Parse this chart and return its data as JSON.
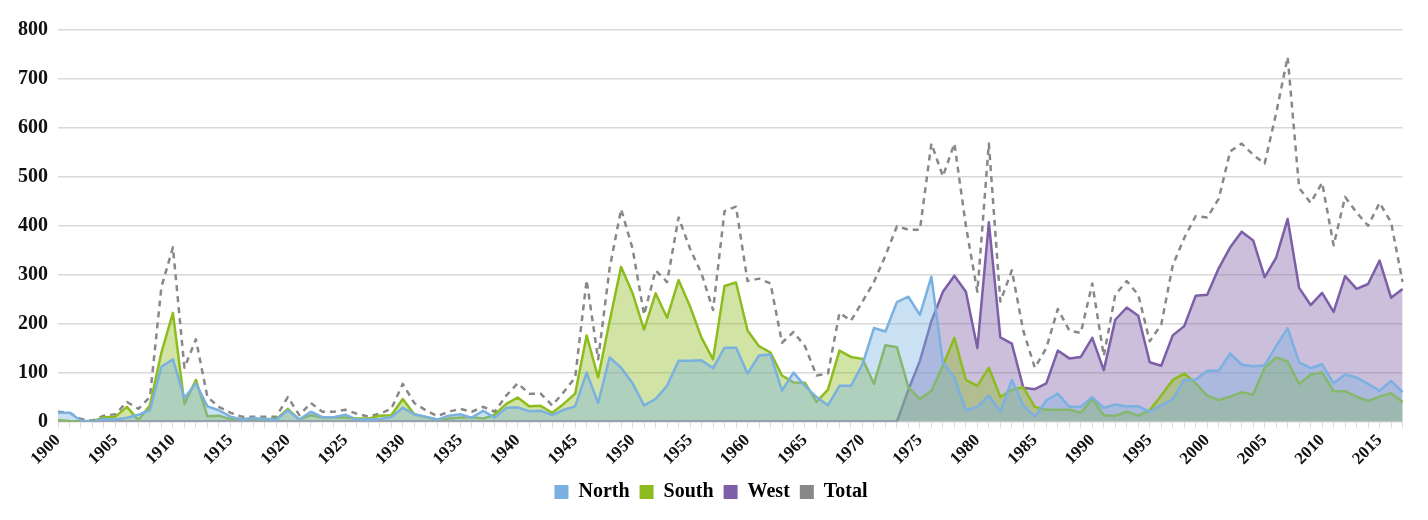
{
  "chart_data": {
    "type": "area",
    "categories": [
      "1900",
      null,
      null,
      null,
      null,
      "1905",
      null,
      null,
      null,
      null,
      "1910",
      null,
      null,
      null,
      null,
      "1915",
      null,
      null,
      null,
      null,
      "1920",
      null,
      null,
      null,
      null,
      "1925",
      null,
      null,
      null,
      null,
      "1930",
      null,
      null,
      null,
      null,
      "1935",
      null,
      null,
      null,
      null,
      "1940",
      null,
      null,
      null,
      null,
      "1945",
      null,
      null,
      null,
      null,
      "1950",
      null,
      null,
      null,
      null,
      "1955",
      null,
      null,
      null,
      null,
      "1960",
      null,
      null,
      null,
      null,
      "1965",
      null,
      null,
      null,
      null,
      "1970",
      null,
      null,
      null,
      null,
      "1975",
      null,
      null,
      null,
      null,
      "1980",
      null,
      null,
      null,
      null,
      "1985",
      null,
      null,
      null,
      null,
      "1990",
      null,
      null,
      null,
      null,
      "1995",
      null,
      null,
      null,
      null,
      "2000",
      null,
      null,
      null,
      null,
      "2005",
      null,
      null,
      null,
      null,
      "2010",
      null,
      null,
      null,
      null,
      "2015",
      null,
      null
    ],
    "series": [
      {
        "name": "North",
        "color": "#7ab1e0",
        "values": [
          18,
          18,
          2,
          0,
          5,
          4,
          8,
          14,
          23,
          112,
          127,
          48,
          78,
          31,
          23,
          10,
          4,
          7,
          5,
          4,
          23,
          4,
          20,
          9,
          9,
          14,
          4,
          4,
          5,
          9,
          28,
          15,
          10,
          4,
          12,
          15,
          8,
          22,
          8,
          28,
          29,
          21,
          22,
          13,
          24,
          31,
          100,
          38,
          131,
          110,
          78,
          33,
          46,
          73,
          124,
          124,
          125,
          109,
          151,
          151,
          98,
          135,
          137,
          63,
          100,
          73,
          50,
          33,
          73,
          73,
          117,
          191,
          184,
          244,
          255,
          218,
          296,
          121,
          90,
          23,
          30,
          53,
          20,
          85,
          33,
          10,
          43,
          57,
          30,
          30,
          50,
          28,
          35,
          31,
          31,
          20,
          33,
          46,
          85,
          86,
          104,
          104,
          139,
          116,
          113,
          115,
          154,
          191,
          121,
          109,
          117,
          78,
          96,
          90,
          77,
          63,
          83,
          60
        ]
      },
      {
        "name": "South",
        "color": "#8dbc1e",
        "values": [
          3,
          1,
          0,
          0,
          9,
          10,
          30,
          3,
          33,
          141,
          222,
          36,
          85,
          11,
          12,
          5,
          5,
          5,
          5,
          5,
          26,
          4,
          13,
          8,
          9,
          8,
          6,
          6,
          12,
          13,
          46,
          15,
          9,
          4,
          6,
          8,
          9,
          6,
          14,
          36,
          49,
          31,
          32,
          18,
          36,
          57,
          176,
          90,
          205,
          316,
          262,
          188,
          262,
          212,
          289,
          235,
          171,
          127,
          277,
          284,
          186,
          154,
          141,
          94,
          80,
          79,
          40,
          65,
          145,
          132,
          128,
          77,
          156,
          152,
          70,
          46,
          63,
          114,
          171,
          85,
          73,
          110,
          50,
          65,
          70,
          30,
          24,
          24,
          24,
          18,
          46,
          13,
          12,
          20,
          12,
          23,
          53,
          85,
          98,
          78,
          53,
          44,
          51,
          60,
          55,
          110,
          131,
          123,
          77,
          96,
          100,
          62,
          62,
          51,
          42,
          51,
          58,
          40
        ]
      },
      {
        "name": "West",
        "color": "#7d5fa8",
        "values": [
          0,
          0,
          0,
          0,
          0,
          0,
          0,
          0,
          0,
          0,
          0,
          0,
          0,
          0,
          0,
          0,
          0,
          0,
          0,
          0,
          0,
          0,
          0,
          0,
          0,
          0,
          0,
          0,
          0,
          0,
          0,
          0,
          0,
          0,
          0,
          0,
          0,
          0,
          0,
          0,
          0,
          0,
          0,
          0,
          0,
          0,
          0,
          0,
          0,
          0,
          0,
          0,
          0,
          0,
          0,
          0,
          0,
          0,
          0,
          0,
          0,
          0,
          0,
          0,
          0,
          0,
          0,
          0,
          0,
          0,
          0,
          0,
          0,
          0,
          65,
          124,
          205,
          265,
          298,
          265,
          150,
          407,
          172,
          159,
          69,
          66,
          78,
          145,
          129,
          132,
          171,
          105,
          208,
          233,
          216,
          121,
          114,
          176,
          195,
          257,
          259,
          313,
          356,
          388,
          370,
          295,
          335,
          414,
          273,
          238,
          263,
          224,
          297,
          271,
          281,
          329,
          253,
          271
        ]
      },
      {
        "name": "Total",
        "type": "line",
        "line_style": "dashed",
        "color": "#888888",
        "values": [
          20,
          18,
          5,
          2,
          12,
          15,
          40,
          26,
          50,
          275,
          356,
          110,
          168,
          50,
          30,
          18,
          10,
          10,
          10,
          10,
          50,
          13,
          38,
          20,
          20,
          24,
          16,
          10,
          16,
          26,
          77,
          38,
          23,
          11,
          20,
          26,
          20,
          30,
          20,
          53,
          78,
          57,
          57,
          33,
          60,
          90,
          289,
          127,
          313,
          434,
          353,
          218,
          309,
          285,
          417,
          353,
          302,
          228,
          430,
          439,
          287,
          292,
          282,
          161,
          183,
          154,
          94,
          98,
          222,
          206,
          245,
          285,
          339,
          399,
          392,
          392,
          568,
          501,
          568,
          400,
          265,
          568,
          245,
          309,
          185,
          110,
          150,
          230,
          186,
          181,
          282,
          134,
          259,
          287,
          259,
          164,
          198,
          319,
          375,
          420,
          417,
          455,
          552,
          568,
          545,
          527,
          630,
          745,
          477,
          447,
          488,
          360,
          459,
          427,
          400,
          447,
          407,
          285
        ]
      }
    ],
    "ylim": [
      0,
      800
    ],
    "yticks": [
      0,
      100,
      200,
      300,
      400,
      500,
      600,
      700,
      800
    ],
    "grid": "y",
    "legend": "bottom"
  }
}
